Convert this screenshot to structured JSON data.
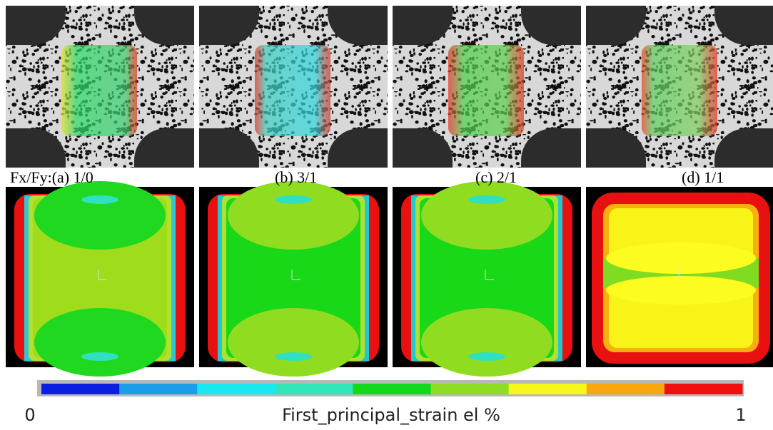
{
  "panels": [
    {
      "label": "Fx/Fy:(a) 1/0"
    },
    {
      "label": "(b)  3/1"
    },
    {
      "label": "(c)  2/1"
    },
    {
      "label": "(d)  1/1"
    }
  ],
  "colorbar": {
    "min_label": "0",
    "max_label": "1",
    "title": "First_principal_strain el  %",
    "colors": [
      "#0a1de0",
      "#1a9ee8",
      "#18e8f0",
      "#2ee6b8",
      "#10d81a",
      "#8edc20",
      "#f6f81a",
      "#f8a80a",
      "#f01010"
    ]
  }
}
